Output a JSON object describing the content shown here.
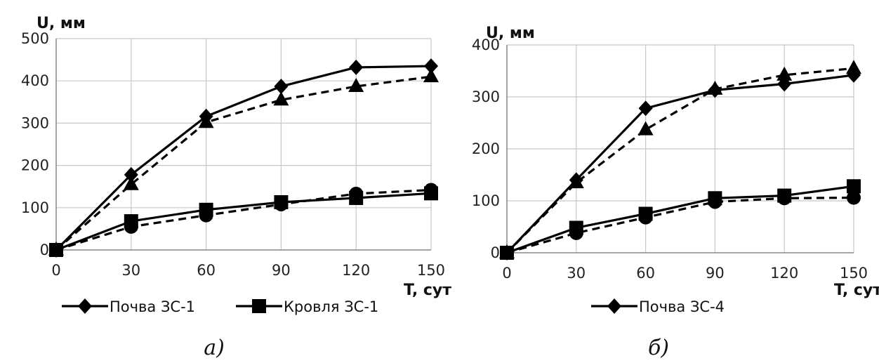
{
  "chart_data": [
    {
      "type": "line",
      "x": [
        0,
        30,
        60,
        90,
        120,
        150
      ],
      "ylim": [
        0,
        500
      ],
      "xlim": [
        0,
        150
      ],
      "yticks": [
        "0",
        "100",
        "200",
        "300",
        "400",
        "500"
      ],
      "xticks": [
        "0",
        "30",
        "60",
        "90",
        "120",
        "150"
      ],
      "ylabel": "U, мм",
      "xlabel": "T, сут",
      "caption": "а)",
      "grid": true,
      "series": [
        {
          "name": "Почва ЗС-1",
          "marker": "diamond",
          "dash": false,
          "values": [
            0,
            178,
            316,
            387,
            432,
            435
          ]
        },
        {
          "name": "",
          "marker": "triangle",
          "dash": true,
          "values": [
            0,
            155,
            302,
            355,
            387,
            410
          ]
        },
        {
          "name": "Кровля ЗС-1",
          "marker": "square",
          "dash": false,
          "values": [
            0,
            68,
            95,
            113,
            123,
            134
          ]
        },
        {
          "name": "",
          "marker": "circle",
          "dash": true,
          "values": [
            0,
            55,
            82,
            108,
            133,
            142
          ]
        }
      ],
      "legend": [
        "Почва ЗС-1",
        "Кровля ЗС-1"
      ]
    },
    {
      "type": "line",
      "x": [
        0,
        30,
        60,
        90,
        120,
        150
      ],
      "ylim": [
        0,
        400
      ],
      "xlim": [
        0,
        150
      ],
      "yticks": [
        "0",
        "100",
        "200",
        "300",
        "400"
      ],
      "xticks": [
        "0",
        "30",
        "60",
        "90",
        "120",
        "150"
      ],
      "ylabel": "U, мм",
      "xlabel": "T, сут",
      "caption": "б)",
      "grid": true,
      "series": [
        {
          "name": "Почва ЗС-4",
          "marker": "diamond",
          "dash": false,
          "values": [
            0,
            140,
            278,
            313,
            325,
            342
          ]
        },
        {
          "name": "",
          "marker": "triangle",
          "dash": true,
          "values": [
            0,
            135,
            237,
            315,
            342,
            355
          ]
        },
        {
          "name": "",
          "marker": "square",
          "dash": false,
          "values": [
            0,
            48,
            75,
            105,
            110,
            128
          ]
        },
        {
          "name": "",
          "marker": "circle",
          "dash": true,
          "values": [
            0,
            38,
            68,
            98,
            105,
            106
          ]
        }
      ],
      "legend": [
        "Почва ЗС-4"
      ]
    }
  ]
}
